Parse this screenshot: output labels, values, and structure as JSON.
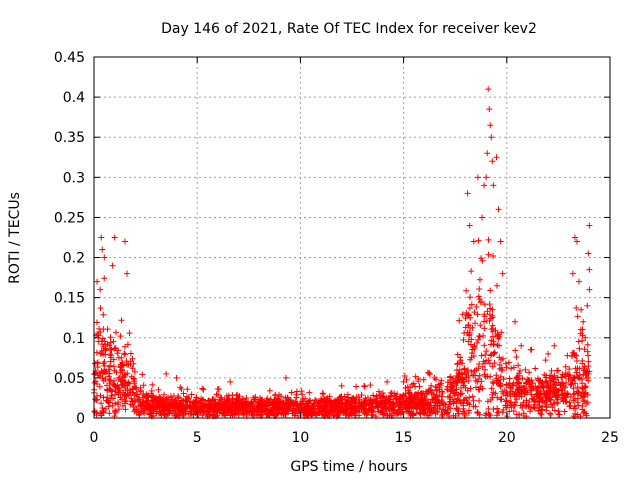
{
  "chart_data": {
    "type": "scatter",
    "title": "Day 146 of 2021, Rate Of TEC Index for receiver kev2",
    "xlabel": "GPS time / hours",
    "ylabel": "ROTI / TECUs",
    "xlim": [
      0,
      25
    ],
    "ylim": [
      0,
      0.45
    ],
    "x_ticks": [
      "0",
      "5",
      "10",
      "15",
      "20",
      "25"
    ],
    "y_ticks": [
      "0",
      "0.05",
      "0.1",
      "0.15",
      "0.2",
      "0.25",
      "0.3",
      "0.35",
      "0.4",
      "0.45"
    ],
    "grid": true,
    "marker": "plus",
    "color": "#ff0000",
    "profile": {
      "hours": [
        0.0,
        0.1,
        0.3,
        0.5,
        0.8,
        1.0,
        1.2,
        1.5,
        1.8,
        2.0,
        2.2,
        2.5,
        3.0,
        3.5,
        4.0,
        5.0,
        6.0,
        7.0,
        8.0,
        9.0,
        9.5,
        10.0,
        11.0,
        12.0,
        13.0,
        14.0,
        14.5,
        15.0,
        16.0,
        17.0,
        17.5,
        17.8,
        18.0,
        18.3,
        18.6,
        18.9,
        19.1,
        19.3,
        19.6,
        20.0,
        20.5,
        21.0,
        21.5,
        22.0,
        22.5,
        23.0,
        23.3,
        23.6,
        24.0
      ],
      "median": [
        0.03,
        0.05,
        0.06,
        0.055,
        0.05,
        0.045,
        0.05,
        0.045,
        0.04,
        0.03,
        0.02,
        0.017,
        0.015,
        0.014,
        0.014,
        0.013,
        0.013,
        0.014,
        0.013,
        0.012,
        0.013,
        0.012,
        0.012,
        0.013,
        0.014,
        0.015,
        0.016,
        0.018,
        0.02,
        0.025,
        0.035,
        0.045,
        0.06,
        0.07,
        0.08,
        0.085,
        0.08,
        0.07,
        0.05,
        0.035,
        0.03,
        0.03,
        0.03,
        0.03,
        0.03,
        0.035,
        0.045,
        0.05,
        0.04
      ],
      "spread": [
        0.05,
        0.08,
        0.1,
        0.09,
        0.07,
        0.06,
        0.06,
        0.05,
        0.045,
        0.035,
        0.025,
        0.02,
        0.018,
        0.016,
        0.016,
        0.015,
        0.015,
        0.016,
        0.015,
        0.015,
        0.015,
        0.015,
        0.015,
        0.016,
        0.017,
        0.018,
        0.02,
        0.022,
        0.025,
        0.03,
        0.045,
        0.06,
        0.08,
        0.1,
        0.12,
        0.14,
        0.14,
        0.12,
        0.08,
        0.05,
        0.04,
        0.035,
        0.035,
        0.035,
        0.035,
        0.04,
        0.06,
        0.07,
        0.06
      ]
    },
    "peaks": [
      {
        "x": 0.15,
        "y": 0.17
      },
      {
        "x": 0.35,
        "y": 0.225
      },
      {
        "x": 0.4,
        "y": 0.21
      },
      {
        "x": 0.5,
        "y": 0.2
      },
      {
        "x": 1.0,
        "y": 0.225
      },
      {
        "x": 1.5,
        "y": 0.22
      },
      {
        "x": 1.6,
        "y": 0.18
      },
      {
        "x": 0.9,
        "y": 0.19
      },
      {
        "x": 0.3,
        "y": 0.16
      },
      {
        "x": 3.5,
        "y": 0.055
      },
      {
        "x": 4.0,
        "y": 0.05
      },
      {
        "x": 6.6,
        "y": 0.045
      },
      {
        "x": 9.3,
        "y": 0.05
      },
      {
        "x": 12.0,
        "y": 0.04
      },
      {
        "x": 14.2,
        "y": 0.045
      },
      {
        "x": 15.0,
        "y": 0.045
      },
      {
        "x": 16.5,
        "y": 0.05
      },
      {
        "x": 18.1,
        "y": 0.28
      },
      {
        "x": 18.2,
        "y": 0.24
      },
      {
        "x": 18.4,
        "y": 0.22
      },
      {
        "x": 18.6,
        "y": 0.3
      },
      {
        "x": 18.8,
        "y": 0.25
      },
      {
        "x": 18.9,
        "y": 0.29
      },
      {
        "x": 19.0,
        "y": 0.3
      },
      {
        "x": 19.05,
        "y": 0.33
      },
      {
        "x": 19.1,
        "y": 0.41
      },
      {
        "x": 19.15,
        "y": 0.385
      },
      {
        "x": 19.2,
        "y": 0.365
      },
      {
        "x": 19.25,
        "y": 0.35
      },
      {
        "x": 19.3,
        "y": 0.32
      },
      {
        "x": 19.35,
        "y": 0.29
      },
      {
        "x": 19.5,
        "y": 0.325
      },
      {
        "x": 19.6,
        "y": 0.26
      },
      {
        "x": 19.7,
        "y": 0.22
      },
      {
        "x": 19.8,
        "y": 0.18
      },
      {
        "x": 20.4,
        "y": 0.12
      },
      {
        "x": 20.7,
        "y": 0.09
      },
      {
        "x": 21.2,
        "y": 0.085
      },
      {
        "x": 22.0,
        "y": 0.08
      },
      {
        "x": 22.3,
        "y": 0.09
      },
      {
        "x": 23.3,
        "y": 0.225
      },
      {
        "x": 23.4,
        "y": 0.22
      },
      {
        "x": 23.5,
        "y": 0.17
      },
      {
        "x": 23.7,
        "y": 0.12
      },
      {
        "x": 23.8,
        "y": 0.1
      },
      {
        "x": 23.9,
        "y": 0.14
      },
      {
        "x": 23.95,
        "y": 0.205
      },
      {
        "x": 24.0,
        "y": 0.24
      },
      {
        "x": 24.0,
        "y": 0.185
      },
      {
        "x": 24.0,
        "y": 0.16
      },
      {
        "x": 23.2,
        "y": 0.18
      },
      {
        "x": 23.6,
        "y": 0.135
      }
    ]
  }
}
